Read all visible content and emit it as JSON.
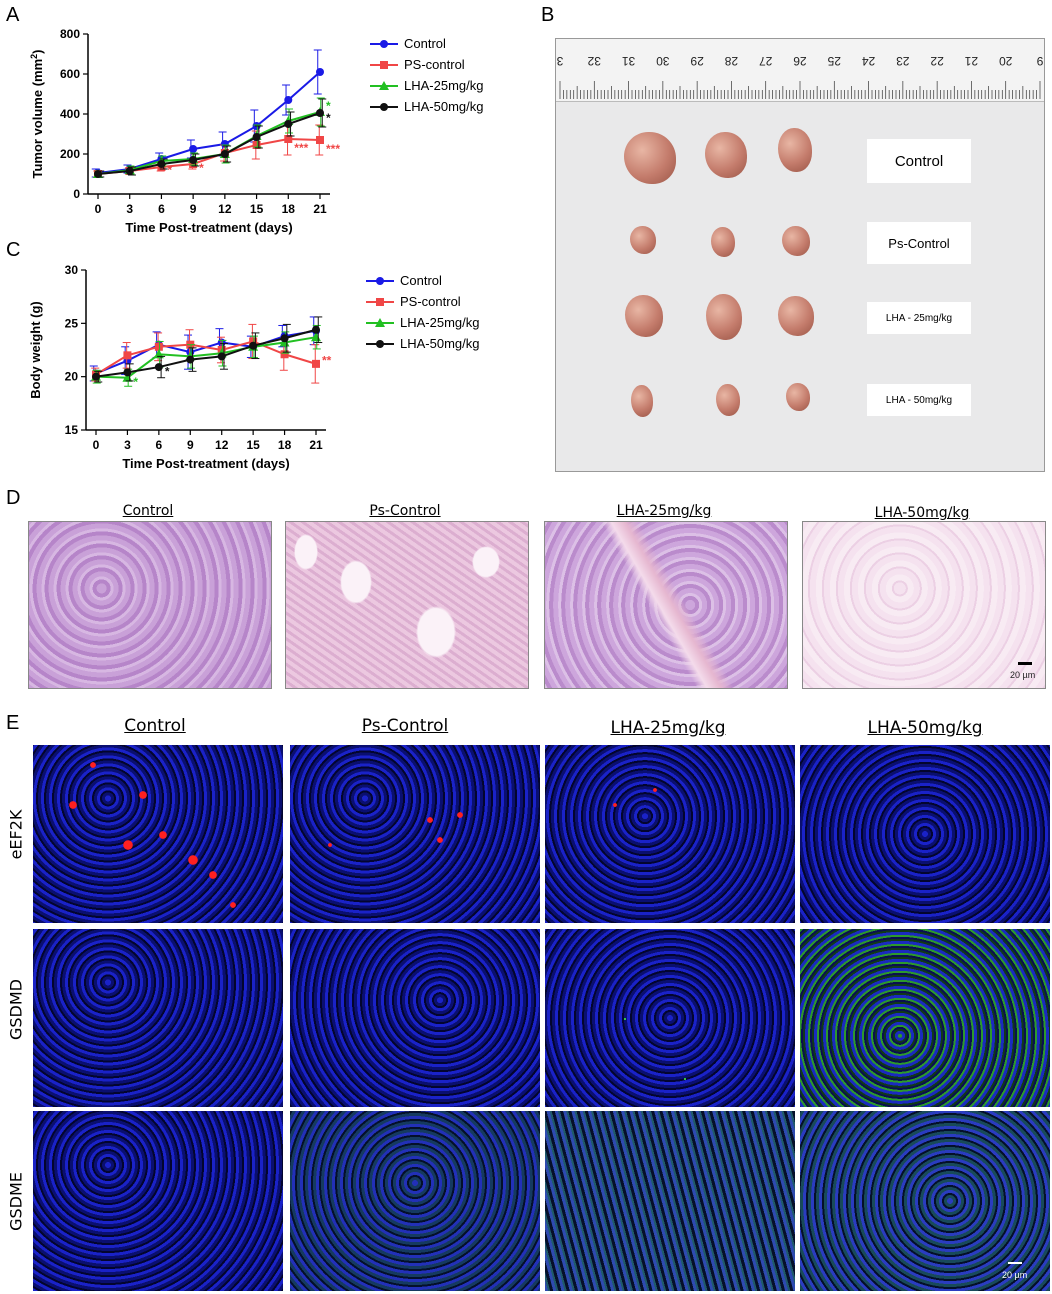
{
  "panels": {
    "A": "A",
    "B": "B",
    "C": "C",
    "D": "D",
    "E": "E"
  },
  "chart_data": [
    {
      "type": "line",
      "panel": "A",
      "xlabel": "Time Post-treatment (days)",
      "ylabel": "Tumor volume (mm²)",
      "ylabel_main": "Tumor volume (mm",
      "ylabel_sup": "2",
      "ylabel_tail": ")",
      "x": [
        0,
        3,
        6,
        9,
        12,
        15,
        18,
        21
      ],
      "xticks": [
        "0",
        "3",
        "6",
        "9",
        "12",
        "15",
        "18",
        "21"
      ],
      "ylim": [
        0,
        800
      ],
      "yticks": [
        "0",
        "200",
        "400",
        "600",
        "800"
      ],
      "ytick_values": [
        0,
        200,
        400,
        600,
        800
      ],
      "legend_position": "right",
      "series": [
        {
          "name": "Control",
          "color": "#1a1ae6",
          "marker": "circle",
          "values": [
            105,
            125,
            175,
            225,
            250,
            340,
            470,
            610
          ],
          "errors": [
            20,
            20,
            30,
            45,
            60,
            80,
            75,
            110
          ]
        },
        {
          "name": "PS-control",
          "color": "#f04646",
          "marker": "square",
          "values": [
            100,
            115,
            135,
            150,
            205,
            245,
            275,
            270
          ],
          "errors": [
            15,
            15,
            20,
            25,
            40,
            70,
            80,
            75
          ]
        },
        {
          "name": "LHA-25mg/kg",
          "color": "#22c022",
          "marker": "triangle",
          "values": [
            100,
            120,
            165,
            175,
            200,
            290,
            365,
            410
          ],
          "errors": [
            15,
            20,
            25,
            30,
            45,
            55,
            60,
            70
          ]
        },
        {
          "name": "LHA-50mg/kg",
          "color": "#111111",
          "marker": "circle",
          "values": [
            100,
            115,
            150,
            170,
            200,
            285,
            350,
            405
          ],
          "errors": [
            15,
            20,
            25,
            30,
            40,
            55,
            60,
            70
          ]
        }
      ],
      "annotations": [
        {
          "x": 6,
          "y": 120,
          "text": "*",
          "color": "#f04646"
        },
        {
          "x": 9,
          "y": 130,
          "text": "*",
          "color": "#f04646"
        },
        {
          "x": 21,
          "y": 440,
          "text": "*",
          "color": "#22c022"
        },
        {
          "x": 21,
          "y": 380,
          "text": "*",
          "color": "#111111"
        },
        {
          "x": 18,
          "y": 230,
          "text": "***",
          "color": "#f04646"
        },
        {
          "x": 21,
          "y": 225,
          "text": "***",
          "color": "#f04646"
        }
      ]
    },
    {
      "type": "line",
      "panel": "C",
      "xlabel": "Time Post-treatment (days)",
      "ylabel": "Body weight (g)",
      "x": [
        0,
        3,
        6,
        9,
        12,
        15,
        18,
        21
      ],
      "xticks": [
        "0",
        "3",
        "6",
        "9",
        "12",
        "15",
        "18",
        "21"
      ],
      "ylim": [
        15,
        30
      ],
      "yticks": [
        "15",
        "20",
        "25",
        "30"
      ],
      "ytick_values": [
        15,
        20,
        25,
        30
      ],
      "legend_position": "right",
      "series": [
        {
          "name": "Control",
          "color": "#1a1ae6",
          "marker": "circle",
          "values": [
            20.3,
            21.5,
            23.0,
            22.3,
            23.2,
            22.8,
            23.8,
            24.3
          ],
          "errors": [
            0.7,
            1.3,
            1.2,
            1.6,
            1.3,
            1.0,
            1.0,
            1.3
          ]
        },
        {
          "name": "PS-control",
          "color": "#f04646",
          "marker": "square",
          "values": [
            20.2,
            22.0,
            22.8,
            23.0,
            22.5,
            23.3,
            22.1,
            21.2
          ],
          "errors": [
            0.6,
            1.2,
            1.3,
            1.4,
            1.2,
            1.6,
            1.5,
            1.8
          ]
        },
        {
          "name": "LHA-25mg/kg",
          "color": "#22c022",
          "marker": "triangle",
          "values": [
            20.0,
            19.9,
            22.1,
            21.9,
            22.2,
            22.8,
            23.2,
            23.7
          ],
          "errors": [
            0.6,
            0.8,
            1.2,
            1.1,
            1.2,
            1.0,
            1.0,
            1.1
          ]
        },
        {
          "name": "LHA-50mg/kg",
          "color": "#111111",
          "marker": "circle",
          "values": [
            20.0,
            20.4,
            20.9,
            21.6,
            21.9,
            22.9,
            23.6,
            24.4
          ],
          "errors": [
            0.5,
            0.8,
            1.0,
            1.1,
            1.2,
            1.2,
            1.3,
            1.2
          ]
        }
      ],
      "annotations": [
        {
          "x": 3,
          "y": 19.5,
          "text": "*",
          "color": "#22c022"
        },
        {
          "x": 6,
          "y": 20.5,
          "text": "*",
          "color": "#111111"
        },
        {
          "x": 21,
          "y": 21.5,
          "text": "**",
          "color": "#f04646"
        }
      ]
    }
  ],
  "photo": {
    "ruler_numbers": [
      "3",
      "32",
      "31",
      "30",
      "29",
      "28",
      "27",
      "26",
      "25",
      "24",
      "23",
      "22",
      "21",
      "20",
      "9"
    ],
    "groups": [
      "Control",
      "Ps-Control",
      "LHA - 25mg/kg",
      "LHA - 50mg/kg"
    ]
  },
  "he": {
    "titles": [
      "Control",
      "Ps-Control",
      "LHA-25mg/kg",
      "LHA-50mg/kg"
    ],
    "scale": "20 µm"
  },
  "if": {
    "titles": [
      "Control",
      "Ps-Control",
      "LHA-25mg/kg",
      "LHA-50mg/kg"
    ],
    "rows": [
      "eEF2K",
      "GSDMD",
      "GSDME"
    ],
    "scale": "20 µm"
  }
}
